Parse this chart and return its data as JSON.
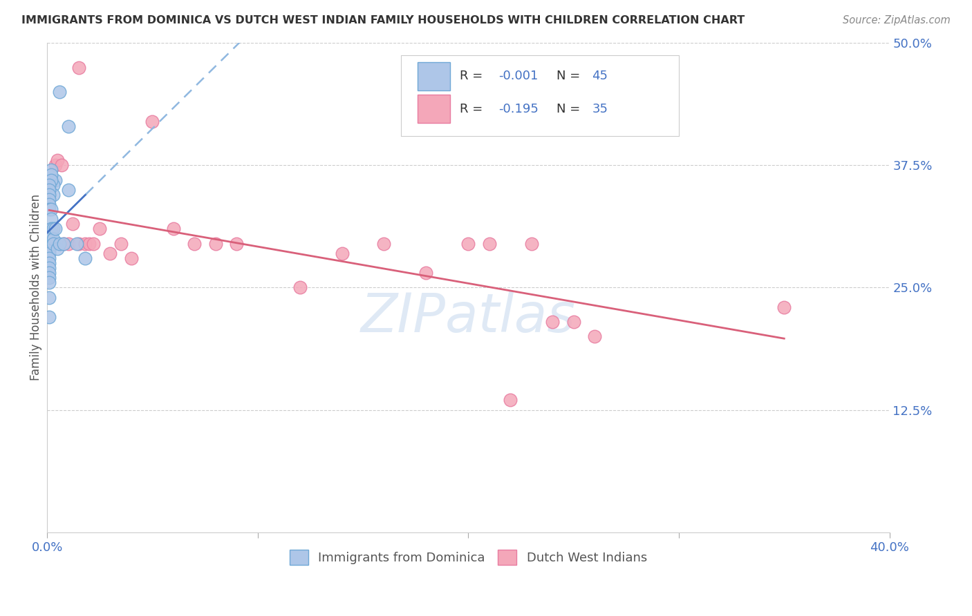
{
  "title": "IMMIGRANTS FROM DOMINICA VS DUTCH WEST INDIAN FAMILY HOUSEHOLDS WITH CHILDREN CORRELATION CHART",
  "source": "Source: ZipAtlas.com",
  "ylabel": "Family Households with Children",
  "xlim": [
    0.0,
    0.4
  ],
  "ylim": [
    0.0,
    0.5
  ],
  "ytick_labels": [
    "12.5%",
    "25.0%",
    "37.5%",
    "50.0%"
  ],
  "ytick_values": [
    0.125,
    0.25,
    0.375,
    0.5
  ],
  "legend_labels": [
    "Immigrants from Dominica",
    "Dutch West Indians"
  ],
  "series1_color": "#aec6e8",
  "series2_color": "#f4a7b9",
  "series1_edge": "#6fa8d6",
  "series2_edge": "#e87ca0",
  "line1_color": "#4472c4",
  "line2_color": "#d9607a",
  "dashed_line_color": "#90b8e0",
  "R1": -0.001,
  "N1": 45,
  "R2": -0.195,
  "N2": 35,
  "blue_dots_x": [
    0.006,
    0.01,
    0.01,
    0.004,
    0.003,
    0.003,
    0.002,
    0.002,
    0.002,
    0.001,
    0.001,
    0.001,
    0.001,
    0.001,
    0.001,
    0.001,
    0.001,
    0.001,
    0.001,
    0.001,
    0.001,
    0.001,
    0.001,
    0.001,
    0.001,
    0.001,
    0.001,
    0.001,
    0.001,
    0.001,
    0.002,
    0.002,
    0.002,
    0.002,
    0.003,
    0.003,
    0.003,
    0.004,
    0.005,
    0.006,
    0.008,
    0.014,
    0.018,
    0.001,
    0.001
  ],
  "blue_dots_y": [
    0.45,
    0.415,
    0.35,
    0.36,
    0.355,
    0.345,
    0.37,
    0.365,
    0.36,
    0.355,
    0.35,
    0.345,
    0.34,
    0.335,
    0.33,
    0.3,
    0.295,
    0.295,
    0.295,
    0.295,
    0.295,
    0.29,
    0.288,
    0.285,
    0.28,
    0.275,
    0.27,
    0.265,
    0.26,
    0.255,
    0.33,
    0.32,
    0.31,
    0.305,
    0.31,
    0.3,
    0.295,
    0.31,
    0.29,
    0.295,
    0.295,
    0.295,
    0.28,
    0.24,
    0.22
  ],
  "pink_dots_x": [
    0.001,
    0.002,
    0.003,
    0.004,
    0.005,
    0.007,
    0.008,
    0.01,
    0.012,
    0.015,
    0.018,
    0.02,
    0.022,
    0.025,
    0.03,
    0.035,
    0.04,
    0.05,
    0.06,
    0.07,
    0.08,
    0.09,
    0.12,
    0.14,
    0.16,
    0.18,
    0.2,
    0.21,
    0.22,
    0.23,
    0.24,
    0.25,
    0.26,
    0.35,
    0.015
  ],
  "pink_dots_y": [
    0.295,
    0.295,
    0.295,
    0.375,
    0.38,
    0.375,
    0.295,
    0.295,
    0.315,
    0.295,
    0.295,
    0.295,
    0.295,
    0.31,
    0.285,
    0.295,
    0.28,
    0.42,
    0.31,
    0.295,
    0.295,
    0.295,
    0.25,
    0.285,
    0.295,
    0.265,
    0.295,
    0.295,
    0.135,
    0.295,
    0.215,
    0.215,
    0.2,
    0.23,
    0.475
  ],
  "watermark": "ZIPatlas",
  "watermark_zip_color": "#b8cfe8",
  "watermark_atlas_color": "#b8cfe8",
  "background_color": "#ffffff",
  "grid_color": "#cccccc"
}
